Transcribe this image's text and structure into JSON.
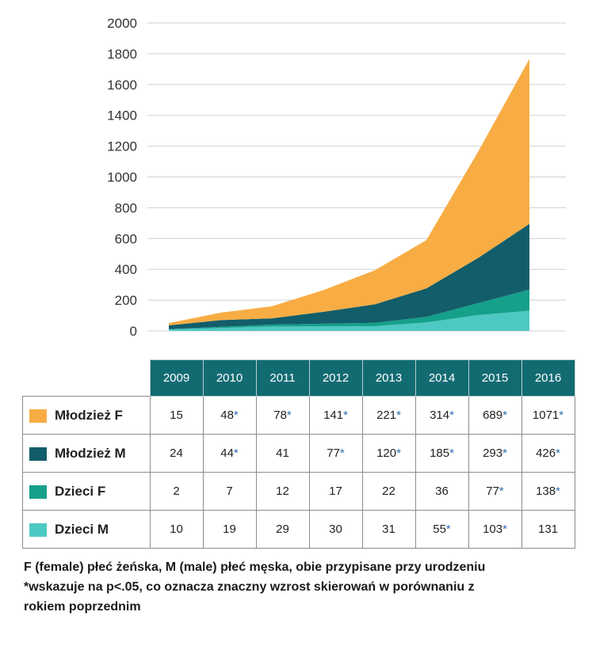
{
  "chart_data": {
    "type": "area",
    "stacked": true,
    "categories": [
      "2009",
      "2010",
      "2011",
      "2012",
      "2013",
      "2014",
      "2015",
      "2016"
    ],
    "yticks": [
      "2000",
      "1800",
      "1600",
      "1400",
      "1200",
      "1000",
      "800",
      "600",
      "400",
      "200",
      "0"
    ],
    "ylim": [
      0,
      2000
    ],
    "series": [
      {
        "key": "dm",
        "name": "Dzieci M",
        "color": "#4ec8c3",
        "values": [
          10,
          19,
          29,
          30,
          31,
          55,
          103,
          131
        ],
        "labels": [
          "10",
          "19",
          "29",
          "30",
          "31",
          "55*",
          "103*",
          "131"
        ]
      },
      {
        "key": "df",
        "name": "Dzieci F",
        "color": "#15a08a",
        "values": [
          2,
          7,
          12,
          17,
          22,
          36,
          77,
          138
        ],
        "labels": [
          "2",
          "7",
          "12",
          "17",
          "22",
          "36",
          "77*",
          "138*"
        ]
      },
      {
        "key": "mm",
        "name": "Młodzież M",
        "color": "#125d6a",
        "values": [
          24,
          44,
          41,
          77,
          120,
          185,
          293,
          426
        ],
        "labels": [
          "24",
          "44*",
          "41",
          "77*",
          "120*",
          "185*",
          "293*",
          "426*"
        ]
      },
      {
        "key": "mf",
        "name": "Młodzież F",
        "color": "#f7ad44",
        "values": [
          15,
          48,
          78,
          141,
          221,
          314,
          689,
          1071
        ],
        "labels": [
          "15",
          "48*",
          "78*",
          "141*",
          "221*",
          "314*",
          "689*",
          "1071*"
        ]
      }
    ],
    "table_row_order": [
      "mf",
      "mm",
      "df",
      "dm"
    ]
  },
  "footnote": {
    "line1": "F (female) płeć żeńska, M (male) płeć męska, obie przypisane przy urodzeniu",
    "line2": "*wskazuje na p<.05, co oznacza znaczny wzrost skierowań w porównaniu z",
    "line3": "rokiem poprzednim"
  }
}
